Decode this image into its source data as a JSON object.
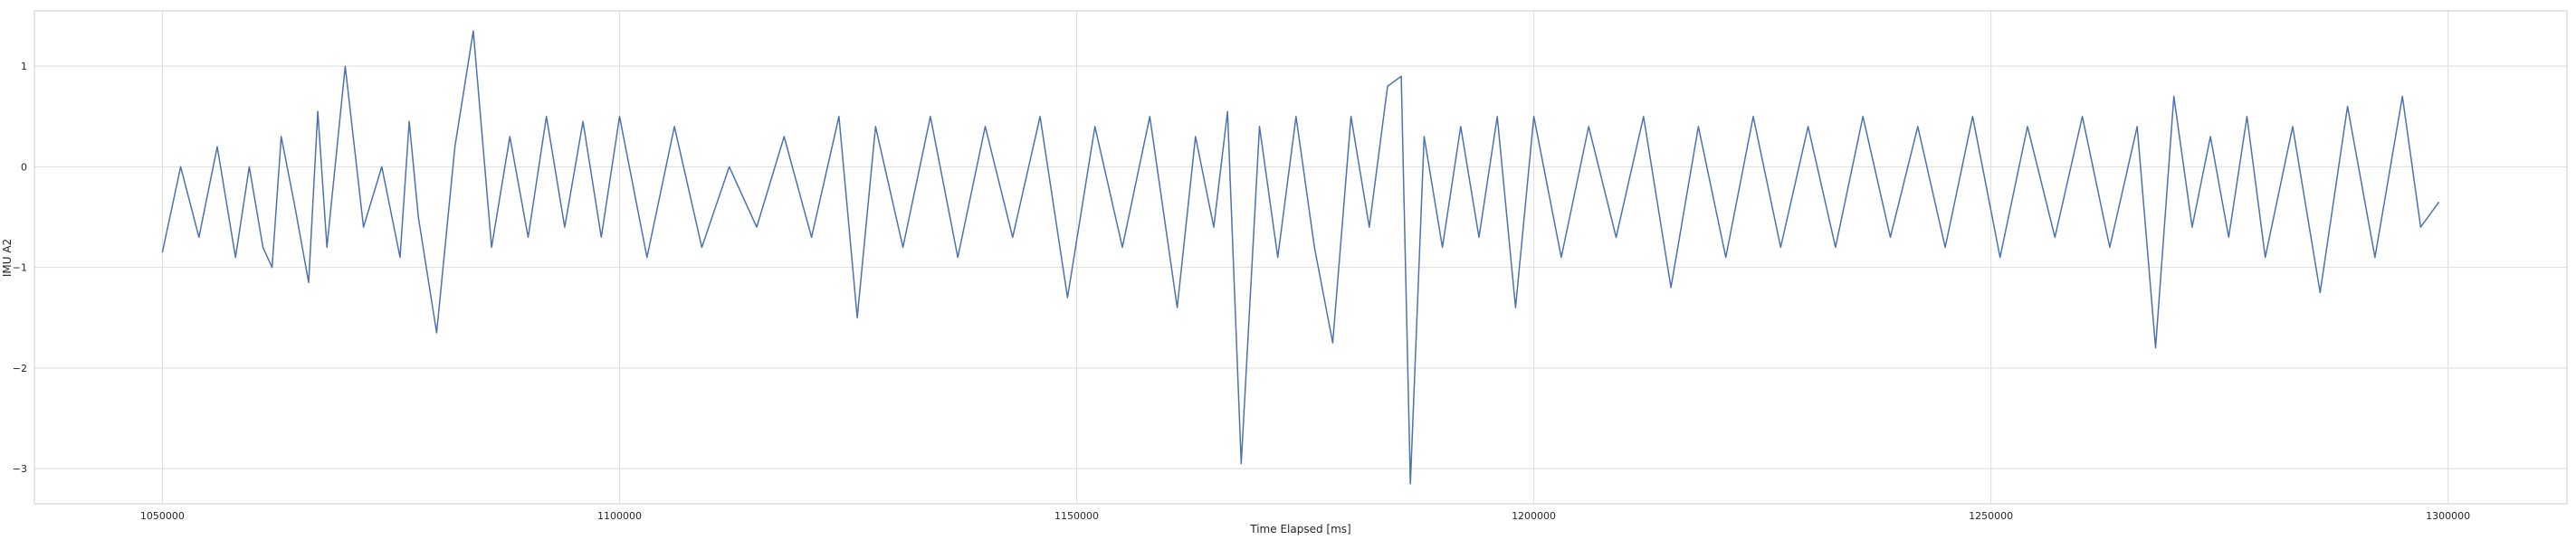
{
  "chart_data": {
    "type": "line",
    "title": "",
    "xlabel": "Time Elapsed [ms]",
    "ylabel": "IMU A2",
    "xlim": [
      1036000,
      1313000
    ],
    "ylim": [
      -3.35,
      1.55
    ],
    "xticks": [
      1050000,
      1100000,
      1150000,
      1200000,
      1250000,
      1300000
    ],
    "yticks": [
      -3,
      -2,
      -1,
      0,
      1
    ],
    "grid": true,
    "colors": {
      "line": "#4c72b0",
      "grid": "#dddddd",
      "background": "#ffffff",
      "frame": "#cccccc"
    },
    "series": [
      {
        "x": [
          1050000,
          1052000,
          1054000,
          1056000,
          1058000,
          1059500,
          1061000,
          1062000,
          1063000,
          1064500,
          1066000,
          1067000,
          1068000,
          1070000,
          1072000,
          1074000,
          1076000,
          1077000,
          1078000,
          1080000,
          1082000,
          1084000,
          1086000,
          1088000,
          1090000,
          1092000,
          1094000,
          1096000,
          1098000,
          1100000,
          1103000,
          1106000,
          1109000,
          1112000,
          1115000,
          1118000,
          1121000,
          1124000,
          1126000,
          1128000,
          1131000,
          1134000,
          1137000,
          1140000,
          1143000,
          1146000,
          1149000,
          1152000,
          1155000,
          1158000,
          1161000,
          1163000,
          1165000,
          1166500,
          1168000,
          1170000,
          1172000,
          1174000,
          1176000,
          1178000,
          1180000,
          1182000,
          1184000,
          1185500,
          1186500,
          1188000,
          1190000,
          1192000,
          1194000,
          1196000,
          1198000,
          1200000,
          1203000,
          1206000,
          1209000,
          1212000,
          1215000,
          1218000,
          1221000,
          1224000,
          1227000,
          1230000,
          1233000,
          1236000,
          1239000,
          1242000,
          1245000,
          1248000,
          1251000,
          1254000,
          1257000,
          1260000,
          1263000,
          1266000,
          1268000,
          1270000,
          1272000,
          1274000,
          1276000,
          1278000,
          1280000,
          1283000,
          1286000,
          1289000,
          1292000,
          1295000,
          1297000,
          1299000
        ],
        "values": [
          -0.85,
          0.0,
          -0.7,
          0.2,
          -0.9,
          0.0,
          -0.8,
          -1.0,
          0.3,
          -0.4,
          -1.15,
          0.55,
          -0.8,
          1.0,
          -0.6,
          0.0,
          -0.9,
          0.45,
          -0.5,
          -1.65,
          0.2,
          1.35,
          -0.8,
          0.3,
          -0.7,
          0.5,
          -0.6,
          0.45,
          -0.7,
          0.5,
          -0.9,
          0.4,
          -0.8,
          0.0,
          -0.6,
          0.3,
          -0.7,
          0.5,
          -1.5,
          0.4,
          -0.8,
          0.5,
          -0.9,
          0.4,
          -0.7,
          0.5,
          -1.3,
          0.4,
          -0.8,
          0.5,
          -1.4,
          0.3,
          -0.6,
          0.55,
          -2.95,
          0.4,
          -0.9,
          0.5,
          -0.8,
          -1.75,
          0.5,
          -0.6,
          0.8,
          0.9,
          -3.15,
          0.3,
          -0.8,
          0.4,
          -0.7,
          0.5,
          -1.4,
          0.5,
          -0.9,
          0.4,
          -0.7,
          0.5,
          -1.2,
          0.4,
          -0.9,
          0.5,
          -0.8,
          0.4,
          -0.8,
          0.5,
          -0.7,
          0.4,
          -0.8,
          0.5,
          -0.9,
          0.4,
          -0.7,
          0.5,
          -0.8,
          0.4,
          -1.8,
          0.7,
          -0.6,
          0.3,
          -0.7,
          0.5,
          -0.9,
          0.4,
          -1.25,
          0.6,
          -0.9,
          0.7,
          -0.6,
          -0.35
        ]
      }
    ]
  }
}
